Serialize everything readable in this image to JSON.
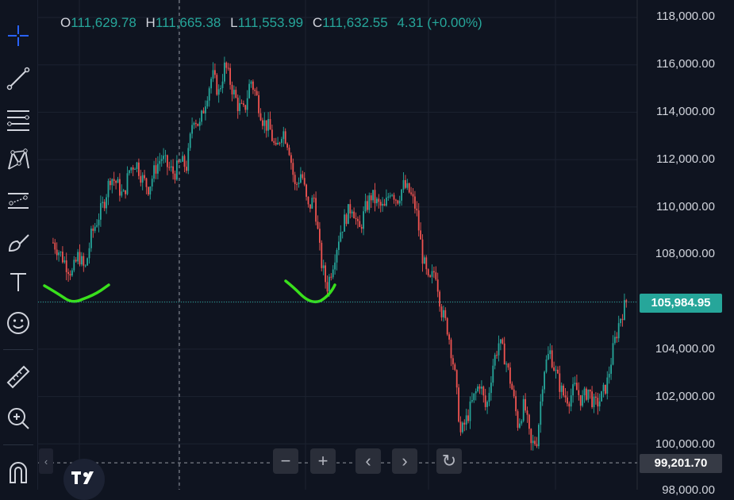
{
  "ohlc": {
    "o_label": "O",
    "o": "111,629.78",
    "h_label": "H",
    "h": "111,665.38",
    "l_label": "L",
    "l": "111,553.99",
    "c_label": "C",
    "c": "111,632.55",
    "change": "4.31 (+0.00%)"
  },
  "price_axis": {
    "labels": [
      "118,000.00",
      "116,000.00",
      "114,000.00",
      "112,000.00",
      "110,000.00",
      "108,000.00",
      "104,000.00",
      "102,000.00",
      "100,000.00",
      "98,000.00"
    ],
    "current_price": "105,984.95",
    "crosshair_price": "99,201.70"
  },
  "colors": {
    "up": "#26a69a",
    "down": "#ef5350",
    "background": "#0f1420",
    "current_tag": "#26a69a",
    "crosshair_tag": "#363a45",
    "annotation": "#39e01c"
  },
  "toolbar": {
    "tools": [
      "crosshair-icon",
      "trend-line-icon",
      "fib-retracement-icon",
      "pattern-icon",
      "forecast-icon",
      "brush-icon",
      "text-icon",
      "emoji-icon",
      "ruler-icon",
      "zoom-in-icon",
      "magnet-icon"
    ]
  },
  "nav": {
    "zoom_out": "−",
    "zoom_in": "+",
    "scroll_left": "‹",
    "scroll_right": "›",
    "reset": "↻"
  },
  "chart_data": {
    "type": "candlestick",
    "title": "",
    "ylim": [
      98000,
      118000
    ],
    "y_ticks": [
      118000,
      116000,
      114000,
      112000,
      110000,
      108000,
      106000,
      104000,
      102000,
      100000,
      98000
    ],
    "current_price": 105984.95,
    "crosshair_price": 99201.7,
    "ohlc_display": {
      "open": 111629.78,
      "high": 111665.38,
      "low": 111553.99,
      "close": 111632.55,
      "change": 4.31,
      "change_pct": 0.0
    },
    "path": [
      108500,
      108100,
      107600,
      107200,
      108000,
      107300,
      108800,
      109500,
      110200,
      111300,
      111000,
      110400,
      111600,
      111900,
      111200,
      110800,
      111600,
      112100,
      111700,
      111400,
      111900,
      111700,
      113900,
      113400,
      114600,
      115600,
      114800,
      116000,
      115100,
      114300,
      114000,
      115400,
      114600,
      113600,
      113300,
      112300,
      113300,
      112600,
      110800,
      111500,
      109900,
      110400,
      107800,
      106600,
      107700,
      108900,
      109600,
      110100,
      108900,
      109900,
      110500,
      110100,
      109900,
      110800,
      110300,
      110900,
      110600,
      109900,
      107900,
      106700,
      107400,
      105600,
      104800,
      103100,
      100400,
      101100,
      101900,
      102600,
      101400,
      103300,
      104300,
      103600,
      102400,
      100800,
      101700,
      99900,
      100200,
      103100,
      103900,
      102900,
      102100,
      101900,
      102400,
      101800,
      102300,
      101600,
      101900,
      102600,
      104100,
      105300,
      105984.95
    ]
  }
}
